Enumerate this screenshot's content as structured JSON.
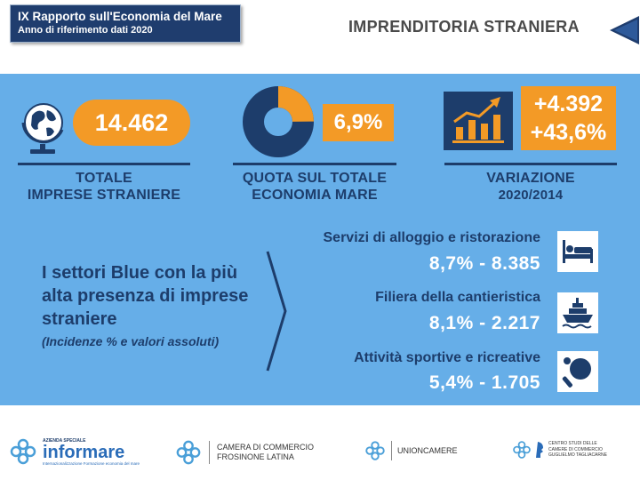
{
  "header": {
    "report_title": "IX Rapporto sull'Economia del Mare",
    "report_subtitle": "Anno di riferimento dati 2020",
    "page_title": "IMPRENDITORIA STRANIERA"
  },
  "stats": {
    "total": {
      "value": "14.462",
      "label_line1": "TOTALE",
      "label_line2": "IMPRESE STRANIERE",
      "icon": "globe-icon"
    },
    "share": {
      "value": "6,9%",
      "fraction": 0.069,
      "label_line1": "QUOTA SUL TOTALE",
      "label_line2": "ECONOMIA MARE",
      "icon": "donut-chart-icon"
    },
    "change": {
      "value_abs": "+4.392",
      "value_pct": "+43,6%",
      "label_line1": "VARIAZIONE",
      "label_line2": "2020/2014",
      "icon": "growth-chart-icon"
    }
  },
  "sectors": {
    "intro": "I settori Blue con la più alta presenza di imprese straniere",
    "note": "(Incidenze % e valori assoluti)",
    "items": [
      {
        "name": "Servizi di alloggio e ristorazione",
        "value": "8,7%  -  8.385",
        "icon": "bed-icon"
      },
      {
        "name": "Filiera della cantieristica",
        "value": "8,1%  -  2.217",
        "icon": "ship-icon"
      },
      {
        "name": "Attività sportive e ricreative",
        "value": "5,4%  -  1.705",
        "icon": "ping-pong-icon"
      }
    ]
  },
  "footer": {
    "informare_top": "AZIENDA SPECIALE",
    "informare_name": "informare",
    "informare_tag": "Internazionalizzazione Formazione economia del mare",
    "camera_line1": "CAMERA DI COMMERCIO",
    "camera_line2": "FROSINONE LATINA",
    "unioncamere": "UNIONCAMERE",
    "tagliacarne_line1": "CENTRO STUDI DELLE",
    "tagliacarne_line2": "CAMERE DI COMMERCIO",
    "tagliacarne_line3": "GUGLIELMO TAGLIACARNE"
  },
  "colors": {
    "panel": "#66aee8",
    "navy": "#1d3d6b",
    "orange": "#f39a26",
    "header_box": "#1f3d6e"
  }
}
